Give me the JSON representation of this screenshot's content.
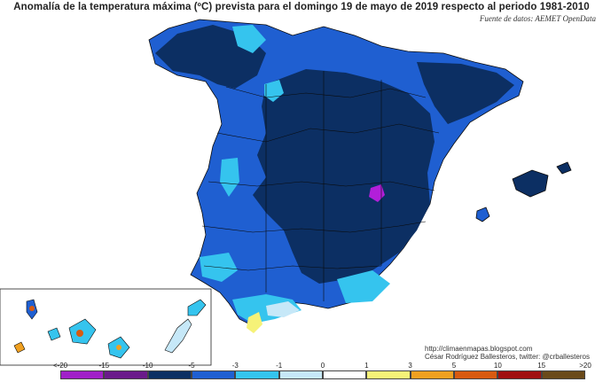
{
  "title": "Anomalía de la temperatura máxima (ºC) prevista para el domingo 19 de mayo de 2019 respecto al periodo 1981-2010",
  "source": "Fuente de datos: AEMET OpenData",
  "credits": {
    "blog": "http://climaenmapas.blogspot.com",
    "author": "César Rodríguez Ballesteros, twitter: @crballesteros"
  },
  "legend": {
    "ticks": [
      "<-20",
      "-15",
      "-10",
      "-5",
      "-3",
      "-1",
      "0",
      "1",
      "3",
      "5",
      "10",
      "15",
      ">20"
    ],
    "colors": [
      "#d96fe8",
      "#a020c8",
      "#6a1a8a",
      "#0c2f63",
      "#1f5fd1",
      "#35c4ee",
      "#c6e8f8",
      "#ffffff",
      "#f6f278",
      "#f0a020",
      "#d85a10",
      "#a01010",
      "#6a4a1a"
    ]
  },
  "palette": {
    "darkest_blue": "#0c2f63",
    "mid_blue": "#1f5fd1",
    "cyan": "#35c4ee",
    "pale_blue": "#c6e8f8",
    "white": "#ffffff",
    "yellow": "#f6f278",
    "magenta": "#b21fd9",
    "sea": "#ffffff"
  }
}
